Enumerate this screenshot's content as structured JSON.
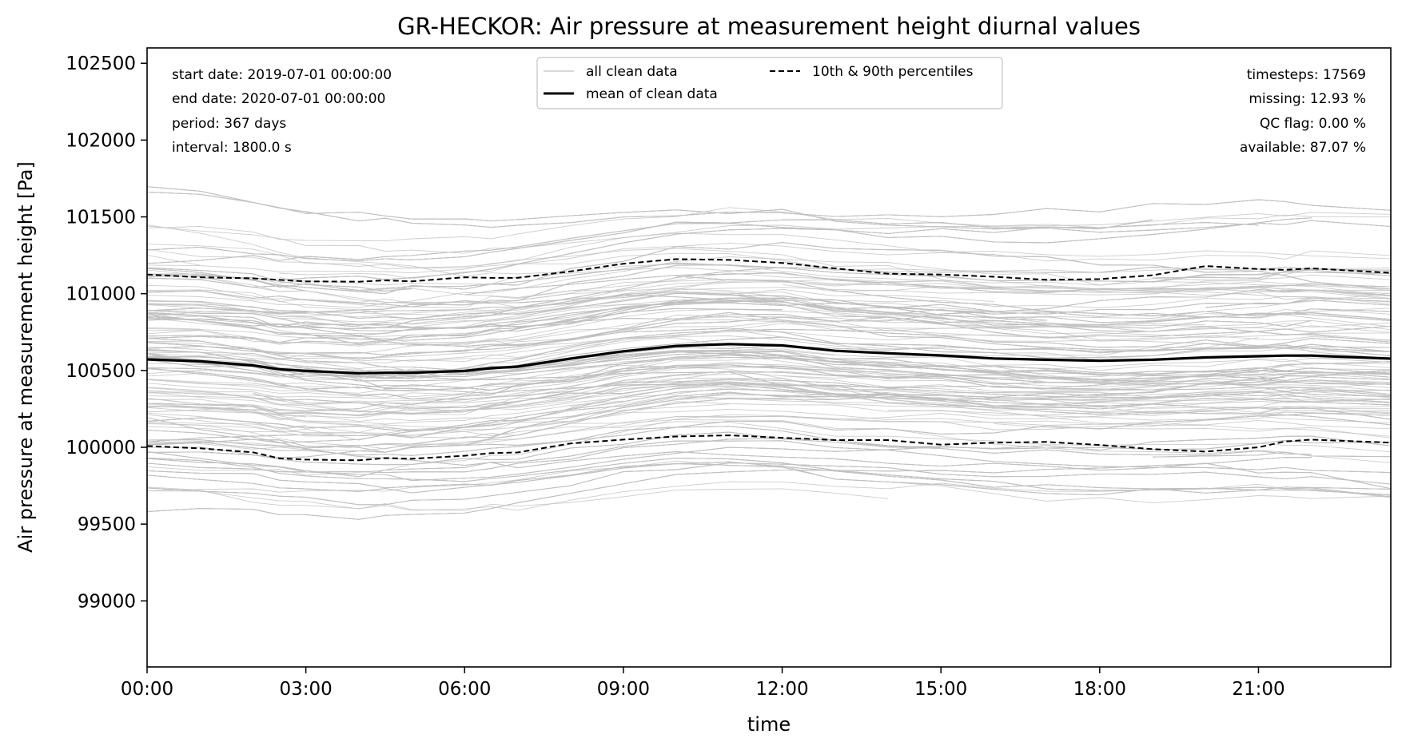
{
  "chart_data": {
    "type": "line",
    "title": "GR-HECKOR: Air pressure at measurement height diurnal values",
    "xlabel": "time",
    "ylabel": "Air pressure at measurement height [Pa]",
    "xlim": [
      0,
      23.5
    ],
    "ylim": [
      98570,
      102600
    ],
    "x_ticks": [
      {
        "value": 0,
        "label": "00:00"
      },
      {
        "value": 3,
        "label": "03:00"
      },
      {
        "value": 6,
        "label": "06:00"
      },
      {
        "value": 9,
        "label": "09:00"
      },
      {
        "value": 12,
        "label": "12:00"
      },
      {
        "value": 15,
        "label": "15:00"
      },
      {
        "value": 18,
        "label": "18:00"
      },
      {
        "value": 21,
        "label": "21:00"
      }
    ],
    "y_ticks": [
      {
        "value": 99000,
        "label": "99000"
      },
      {
        "value": 99500,
        "label": "99500"
      },
      {
        "value": 100000,
        "label": "100000"
      },
      {
        "value": 100500,
        "label": "100500"
      },
      {
        "value": 101000,
        "label": "101000"
      },
      {
        "value": 101500,
        "label": "101500"
      },
      {
        "value": 102000,
        "label": "102000"
      },
      {
        "value": 102500,
        "label": "102500"
      }
    ],
    "x": [
      0,
      1,
      2,
      2.5,
      3,
      4,
      4.5,
      5,
      6,
      6.5,
      7,
      8,
      9,
      10,
      11,
      12,
      13,
      14,
      15,
      16,
      17,
      18,
      19,
      20,
      21,
      21.5,
      22,
      23.5
    ],
    "series": [
      {
        "name": "mean of clean data",
        "style": "solid",
        "color": "#000000",
        "values": [
          100572,
          100560,
          100533,
          100508,
          100497,
          100482,
          100485,
          100485,
          100497,
          100515,
          100525,
          100577,
          100625,
          100660,
          100672,
          100663,
          100628,
          100612,
          100598,
          100578,
          100570,
          100563,
          100570,
          100585,
          100593,
          100597,
          100597,
          100577
        ]
      },
      {
        "name": "10th & 90th percentiles",
        "style": "dashed",
        "color": "#000000",
        "values": [
          101125,
          101107,
          101100,
          101090,
          101080,
          101078,
          101087,
          101080,
          101107,
          101103,
          101103,
          101145,
          101195,
          101225,
          101220,
          101200,
          101165,
          101130,
          101125,
          101110,
          101090,
          101095,
          101120,
          101180,
          101160,
          101155,
          101165,
          101135
        ]
      },
      {
        "name": "10th & 90th percentiles",
        "style": "dashed",
        "color": "#000000",
        "values": [
          100008,
          99993,
          99967,
          99928,
          99920,
          99915,
          99930,
          99925,
          99945,
          99962,
          99966,
          100025,
          100050,
          100070,
          100078,
          100062,
          100047,
          100047,
          100017,
          100030,
          100035,
          100015,
          99988,
          99972,
          100000,
          100038,
          100050,
          100030
        ]
      }
    ],
    "background_series": {
      "name": "all clean data",
      "color": "#c0c0c0",
      "count": 367
    },
    "legend": {
      "position": "upper center",
      "entries": [
        "all clean data",
        "mean of clean data",
        "10th & 90th percentiles"
      ]
    },
    "grid": false,
    "info_left": [
      "start date: 2019-07-01 00:00:00",
      "end date: 2020-07-01 00:00:00",
      "period: 367 days",
      "interval: 1800.0 s"
    ],
    "info_right": [
      "timesteps: 17569",
      "missing: 12.93 %",
      "QC flag: 0.00 %",
      "available: 87.07 %"
    ]
  }
}
